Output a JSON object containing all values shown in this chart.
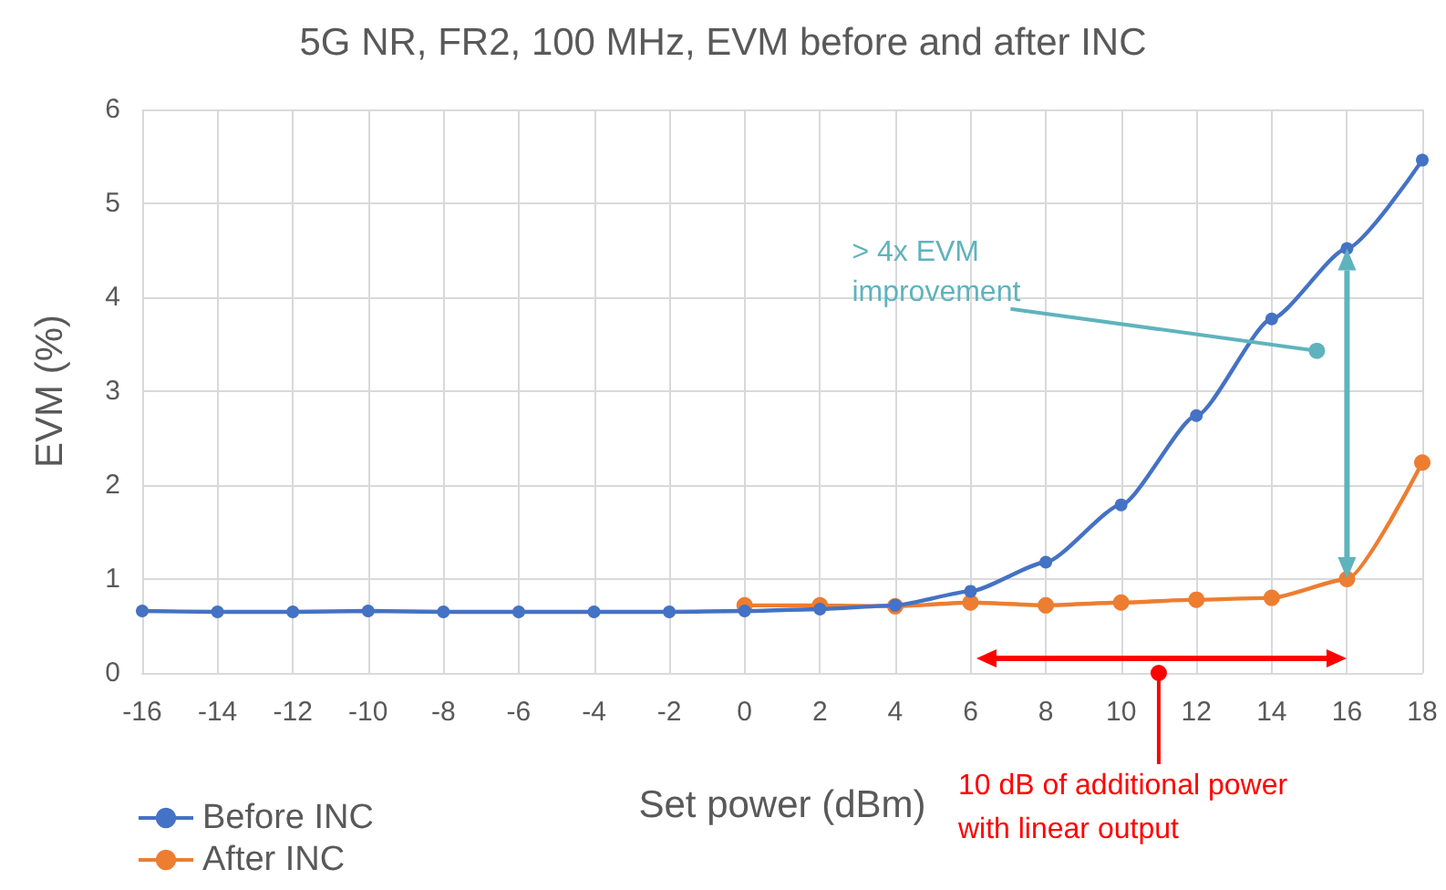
{
  "chart_data": {
    "type": "line",
    "title": "5G NR, FR2, 100 MHz, EVM before and after INC",
    "xlabel": "Set power (dBm)",
    "ylabel": "EVM (%)",
    "xlim": [
      -16,
      18
    ],
    "xticks": [
      -16,
      -14,
      -12,
      -10,
      -8,
      -6,
      -4,
      -2,
      0,
      2,
      4,
      6,
      8,
      10,
      12,
      14,
      16,
      18
    ],
    "ylim": [
      0,
      6
    ],
    "yticks": [
      0,
      1,
      2,
      3,
      4,
      5,
      6
    ],
    "grid": true,
    "legend": "bottom left",
    "marker": "circle",
    "line_style": "solid",
    "series": [
      {
        "name": "Before INC",
        "color": "#4472c4",
        "x": [
          -16,
          -14,
          -12,
          -10,
          -8,
          -6,
          -4,
          -2,
          0,
          2,
          4,
          6,
          8,
          10,
          12,
          14,
          16,
          18
        ],
        "values": [
          0.66,
          0.65,
          0.65,
          0.66,
          0.65,
          0.65,
          0.65,
          0.65,
          0.66,
          0.68,
          0.72,
          0.87,
          1.18,
          1.79,
          2.74,
          3.77,
          4.52,
          5.46
        ]
      },
      {
        "name": "After INC",
        "color": "#ed7d31",
        "x": [
          0,
          2,
          4,
          6,
          8,
          10,
          12,
          14,
          16,
          18
        ],
        "values": [
          0.72,
          0.72,
          0.71,
          0.75,
          0.72,
          0.75,
          0.78,
          0.8,
          1.0,
          2.24
        ]
      }
    ],
    "annotations": [
      {
        "text": "> 4x EVM\nimprovement",
        "x": 15.2,
        "y": 3.43
      },
      {
        "text": "10 dB of additional power\nwith linear output",
        "x": 11,
        "y": 0
      }
    ]
  }
}
